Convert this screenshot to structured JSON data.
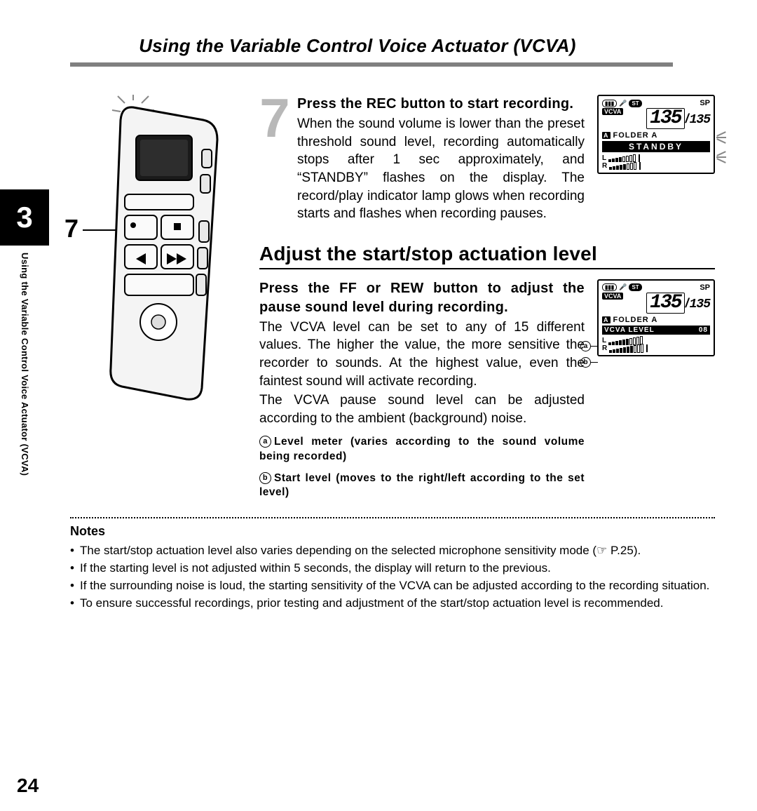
{
  "header": {
    "title": "Using the Variable Control Voice Actuator (VCVA)"
  },
  "chapter": {
    "number": "3",
    "sideLabel": "Using the Variable Control Voice Actuator (VCVA)"
  },
  "step7": {
    "number": "7",
    "calloutNumber": "7",
    "heading_pre": "Press the ",
    "heading_btn": "REC",
    "heading_post": " button to start recording.",
    "body": "When the sound volume is lower than the preset threshold sound level, recording automatically stops after 1 sec approximately, and “STANDBY” flashes on the display. The record/play indicator lamp glows when recording starts and flashes when recording pauses."
  },
  "section": {
    "title": "Adjust the start/stop actuation level"
  },
  "adjust": {
    "heading_pre": "Press the ",
    "heading_btn1": "FF",
    "heading_mid": " or ",
    "heading_btn2": "REW",
    "heading_post": " button to adjust the pause sound level during recording.",
    "body1": "The VCVA level can be set to any of 15 different values. The higher the value, the more sensitive the recorder to sounds. At the highest value, even the faintest sound will activate recording.",
    "body2": "The VCVA pause sound level can be adjusted according to the ambient (background) noise.",
    "legend_a_label": "a",
    "legend_a_text": "Level meter (varies according to the sound volume being recorded)",
    "legend_b_label": "b",
    "legend_b_text": "Start level (moves to the right/left according to the set level)"
  },
  "lcd1": {
    "sp": "SP",
    "vcva": "VCVA",
    "bigNum": "135",
    "smallNum": "135",
    "folderIcon": "A",
    "folder": "FOLDER A",
    "banner": "STANDBY",
    "L": "L",
    "R": "R",
    "lSegsTotal": 8,
    "lSegsOn": 4,
    "rSegsTotal": 8,
    "rSegsOn": 5
  },
  "lcd2": {
    "sp": "SP",
    "vcva": "VCVA",
    "bigNum": "135",
    "smallNum": "135",
    "folderIcon": "A",
    "folder": "FOLDER A",
    "bannerLabel": "VCVA LEVEL",
    "bannerValue": "08",
    "aLabel": "a",
    "bLabel": "b",
    "L": "L",
    "R": "R",
    "lSegsTotal": 10,
    "lSegsOn": 6,
    "rSegsTotal": 10,
    "rSegsOn": 7
  },
  "notes": {
    "title": "Notes",
    "items": [
      "The start/stop actuation level also varies depending on the selected microphone sensitivity mode (☞ P.25).",
      "If the starting level is not adjusted within 5 seconds, the display will return to the previous.",
      "If the surrounding noise is loud, the starting sensitivity of the VCVA can be adjusted according to the recording situation.",
      "To ensure successful recordings, prior testing and adjustment of the start/stop actuation level is recommended."
    ]
  },
  "pageNumber": "24",
  "colors": {
    "ruleGray": "#808080",
    "stepNumGray": "#b8b8b8",
    "black": "#000000"
  }
}
